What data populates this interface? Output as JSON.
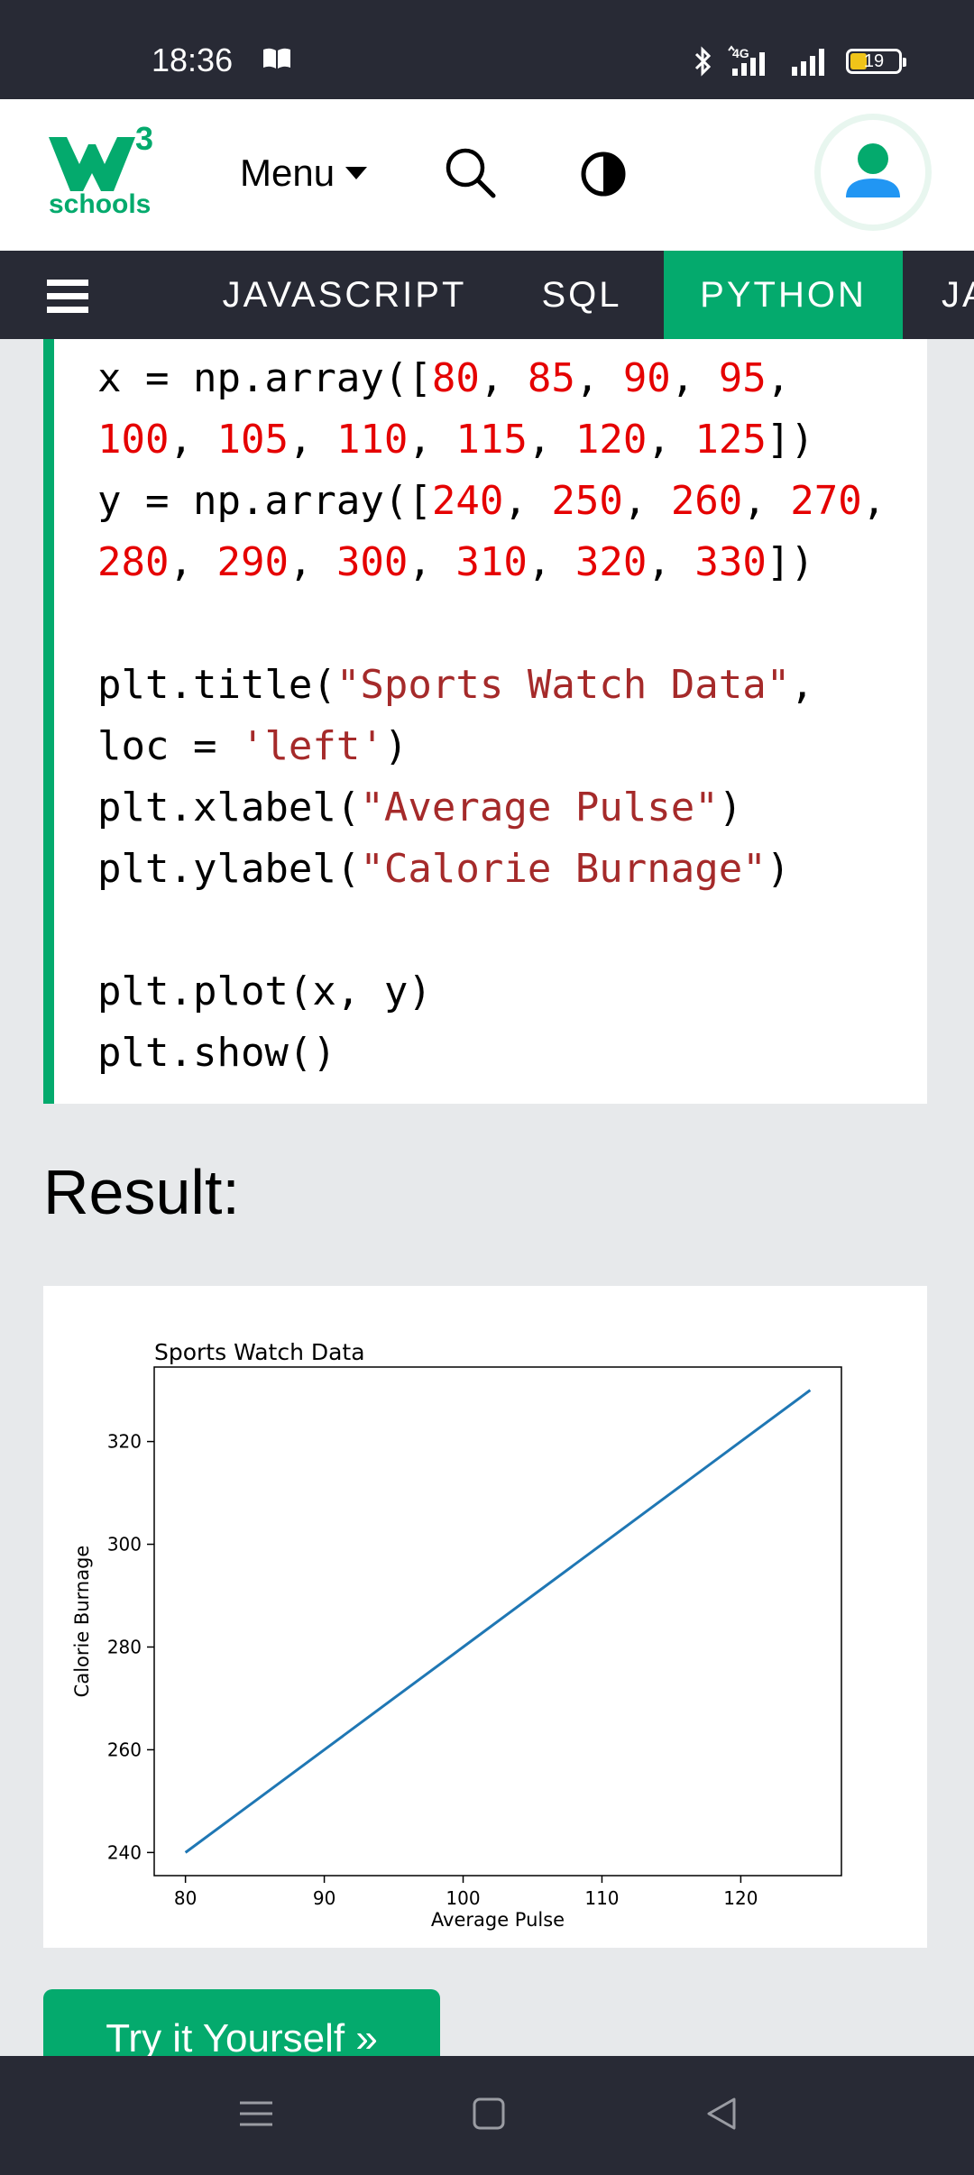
{
  "status_bar": {
    "time": "18:36",
    "battery": "19",
    "icons": [
      "book-icon",
      "bluetooth-icon",
      "4g-signal-icon",
      "signal-bars-icon",
      "battery-icon"
    ]
  },
  "header": {
    "logo_superscript": "3",
    "logo_text": "schools",
    "menu_label": "Menu"
  },
  "topnav": {
    "tabs": [
      "JAVASCRIPT",
      "SQL",
      "PYTHON",
      "JA"
    ],
    "active_tab": "PYTHON"
  },
  "code": {
    "lines": [
      [
        [
          "x = np.array([",
          "plain"
        ],
        [
          "80",
          "num"
        ],
        [
          ", ",
          "plain"
        ],
        [
          "85",
          "num"
        ],
        [
          ", ",
          "plain"
        ],
        [
          "90",
          "num"
        ],
        [
          ", ",
          "plain"
        ],
        [
          "95",
          "num"
        ],
        [
          ",",
          "plain"
        ]
      ],
      [
        [
          "100",
          "num"
        ],
        [
          ", ",
          "plain"
        ],
        [
          "105",
          "num"
        ],
        [
          ", ",
          "plain"
        ],
        [
          "110",
          "num"
        ],
        [
          ", ",
          "plain"
        ],
        [
          "115",
          "num"
        ],
        [
          ", ",
          "plain"
        ],
        [
          "120",
          "num"
        ],
        [
          ", ",
          "plain"
        ],
        [
          "125",
          "num"
        ],
        [
          "])",
          "plain"
        ]
      ],
      [
        [
          "y = np.array([",
          "plain"
        ],
        [
          "240",
          "num"
        ],
        [
          ", ",
          "plain"
        ],
        [
          "250",
          "num"
        ],
        [
          ", ",
          "plain"
        ],
        [
          "260",
          "num"
        ],
        [
          ", ",
          "plain"
        ],
        [
          "270",
          "num"
        ],
        [
          ",",
          "plain"
        ]
      ],
      [
        [
          "280",
          "num"
        ],
        [
          ", ",
          "plain"
        ],
        [
          "290",
          "num"
        ],
        [
          ", ",
          "plain"
        ],
        [
          "300",
          "num"
        ],
        [
          ", ",
          "plain"
        ],
        [
          "310",
          "num"
        ],
        [
          ", ",
          "plain"
        ],
        [
          "320",
          "num"
        ],
        [
          ", ",
          "plain"
        ],
        [
          "330",
          "num"
        ],
        [
          "])",
          "plain"
        ]
      ],
      [
        [
          "",
          "plain"
        ]
      ],
      [
        [
          "plt.title(",
          "plain"
        ],
        [
          "\"Sports Watch Data\"",
          "str"
        ],
        [
          ",",
          "plain"
        ]
      ],
      [
        [
          "loc = ",
          "plain"
        ],
        [
          "'left'",
          "str"
        ],
        [
          ")",
          "plain"
        ]
      ],
      [
        [
          "plt.xlabel(",
          "plain"
        ],
        [
          "\"Average Pulse\"",
          "str"
        ],
        [
          ")",
          "plain"
        ]
      ],
      [
        [
          "plt.ylabel(",
          "plain"
        ],
        [
          "\"Calorie Burnage\"",
          "str"
        ],
        [
          ")",
          "plain"
        ]
      ],
      [
        [
          "",
          "plain"
        ]
      ],
      [
        [
          "plt.plot(x, y)",
          "plain"
        ]
      ],
      [
        [
          "plt.show()",
          "plain"
        ]
      ]
    ]
  },
  "result_heading": "Result:",
  "chart_data": {
    "type": "line",
    "title": "Sports Watch Data",
    "title_loc": "left",
    "xlabel": "Average Pulse",
    "ylabel": "Calorie Burnage",
    "x": [
      80,
      85,
      90,
      95,
      100,
      105,
      110,
      115,
      120,
      125
    ],
    "series": [
      {
        "values": [
          240,
          250,
          260,
          270,
          280,
          290,
          300,
          310,
          320,
          330
        ],
        "color": "#1f77b4"
      }
    ],
    "xticks": [
      80,
      90,
      100,
      110,
      120
    ],
    "yticks": [
      240,
      260,
      280,
      300,
      320
    ],
    "xlim": [
      77.75,
      127.25
    ],
    "ylim": [
      235.5,
      334.5
    ],
    "grid": false
  },
  "try_button": "Try it Yourself »",
  "colors": {
    "accent": "#04aa6d",
    "dark_bar": "#282a35",
    "code_number": "#e50000",
    "code_string": "#a52a2a"
  }
}
